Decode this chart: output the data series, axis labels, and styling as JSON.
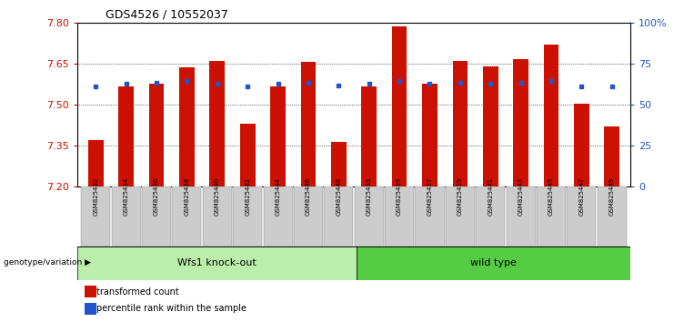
{
  "title": "GDS4526 / 10552037",
  "samples": [
    "GSM825432",
    "GSM825434",
    "GSM825436",
    "GSM825438",
    "GSM825440",
    "GSM825442",
    "GSM825444",
    "GSM825446",
    "GSM825448",
    "GSM825433",
    "GSM825435",
    "GSM825437",
    "GSM825439",
    "GSM825441",
    "GSM825443",
    "GSM825445",
    "GSM825447",
    "GSM825449"
  ],
  "red_values": [
    7.37,
    7.565,
    7.575,
    7.635,
    7.66,
    7.43,
    7.565,
    7.655,
    7.365,
    7.565,
    7.785,
    7.575,
    7.66,
    7.64,
    7.665,
    7.72,
    7.505,
    7.42
  ],
  "blue_values": [
    7.565,
    7.575,
    7.58,
    7.585,
    7.575,
    7.565,
    7.575,
    7.58,
    7.57,
    7.575,
    7.585,
    7.575,
    7.58,
    7.575,
    7.58,
    7.585,
    7.565,
    7.565
  ],
  "group1_label": "Wfs1 knock-out",
  "group2_label": "wild type",
  "group1_count": 9,
  "group2_count": 9,
  "ymin": 7.2,
  "ymax": 7.8,
  "yticks": [
    7.2,
    7.35,
    7.5,
    7.65,
    7.8
  ],
  "y2ticks": [
    0,
    25,
    50,
    75,
    100
  ],
  "y2ticklabels": [
    "0",
    "25",
    "50",
    "75",
    "100%"
  ],
  "bar_color": "#cc1100",
  "blue_color": "#2255cc",
  "group1_bg": "#bbeeaa",
  "group2_bg": "#55cc44",
  "tick_label_bg": "#cccccc",
  "legend_red_label": "transformed count",
  "legend_blue_label": "percentile rank within the sample",
  "genotype_label": "genotype/variation"
}
